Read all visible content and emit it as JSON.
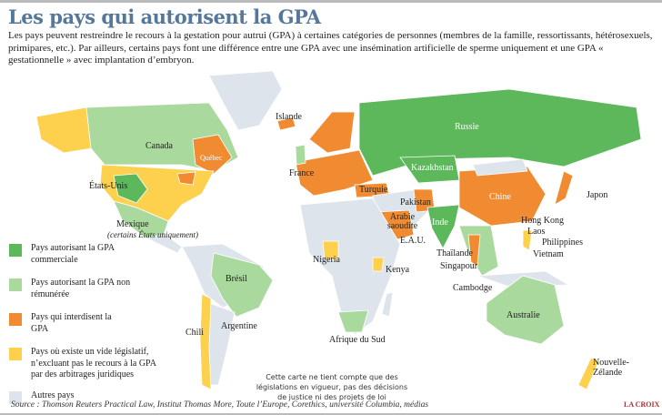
{
  "title": "Les pays qui autorisent la GPA",
  "intro": "Les pays peuvent restreindre le recours à la gestation pour autrui (GPA) à certaines catégories de personnes (membres de la famille, ressortissants, hétérosexuels, primipares, etc.).  Par ailleurs, certains pays font une différence entre une GPA avec une insémination artificielle de sperme uniquement et une GPA « gestationnelle » avec implantation d’embryon.",
  "colors": {
    "commercial": "#5cb85a",
    "non_remunere": "#a9d99c",
    "interdit": "#f18b31",
    "vide": "#fdd14e",
    "autres": "#dde4ec",
    "title": "#55779a"
  },
  "legend": [
    {
      "label": "Pays autorisant la GPA commerciale",
      "color": "#5cb85a"
    },
    {
      "label": "Pays autorisant la GPA non rémunérée",
      "color": "#a9d99c"
    },
    {
      "label": "Pays qui interdisent la GPA",
      "color": "#f18b31"
    },
    {
      "label": "Pays où existe un vide législatif, n’excluant pas le recours à la GPA par des arbitrages juridiques",
      "color": "#fdd14e"
    },
    {
      "label": "Autres pays",
      "color": "#dde4ec"
    }
  ],
  "labels": {
    "canada": "Canada",
    "quebec": "Québec",
    "usa": "États-Unis",
    "mexique": "Mexique",
    "mexique_note": "(certains États uniquement)",
    "bresil": "Brésil",
    "chili": "Chili",
    "argentine": "Argentine",
    "islande": "Islande",
    "france": "France",
    "russie": "Russie",
    "kazakhstan": "Kazakhstan",
    "turquie": "Turquie",
    "pakistan": "Pakistan",
    "chine": "Chine",
    "japon": "Japon",
    "inde": "Inde",
    "arabie": "Arabie saoudite",
    "eau": "E.A.U.",
    "hongkong": "Hong Kong",
    "laos": "Laos",
    "philippines": "Philippines",
    "vietnam": "Vietnam",
    "thailande": "Thaïlande",
    "singapour": "Singapour",
    "cambodge": "Cambodge",
    "nigeria": "Nigeria",
    "kenya": "Kenya",
    "afriquesud": "Afrique du Sud",
    "australie": "Australie",
    "nz": "Nouvelle-Zélande"
  },
  "note": "Cette carte ne tient compte que des législations en vigueur, pas des décisions de justice ni des projets de loi",
  "source": "Source : Thomson Reuters Practical Law, Institut Thomas More, Toute l’Europe, Corethics, université Columbia, médias",
  "logo": "LA CROIX"
}
